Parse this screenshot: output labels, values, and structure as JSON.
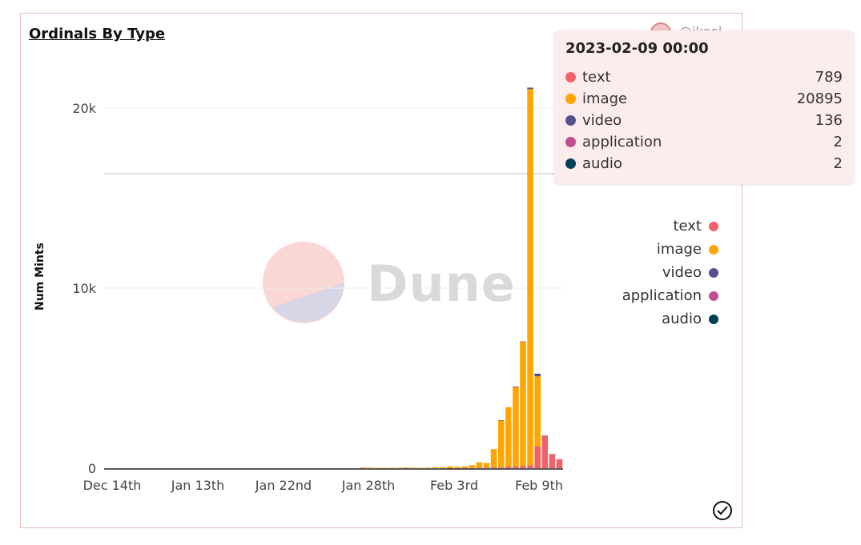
{
  "chart_data": {
    "type": "bar",
    "stacked": true,
    "title": "Ordinals By Type",
    "ylabel": "Num Mints",
    "xlabel": "",
    "ylim": [
      0,
      22000
    ],
    "y_ticks": [
      "0",
      "10k",
      "20k"
    ],
    "x_tick_labels": [
      "Dec 14th",
      "Jan 13th",
      "Jan 22nd",
      "Jan 28th",
      "Feb 3rd",
      "Feb 9th"
    ],
    "series": [
      {
        "name": "text",
        "color": "#f0626a",
        "values": [
          0,
          0,
          0,
          0,
          0,
          0,
          0,
          0,
          0,
          0,
          0,
          0,
          0,
          0,
          0,
          0,
          0,
          0,
          0,
          0,
          0,
          0,
          0,
          0,
          0,
          0,
          0,
          0,
          0,
          0,
          0,
          0,
          0,
          0,
          0,
          0,
          0,
          0,
          0,
          0,
          0,
          0,
          0,
          0,
          0,
          0,
          0,
          5,
          10,
          20,
          15,
          30,
          40,
          60,
          50,
          90,
          90,
          120,
          160,
          1200,
          1800,
          789,
          500
        ]
      },
      {
        "name": "image",
        "color": "#ffa600",
        "values": [
          0,
          0,
          0,
          0,
          0,
          0,
          0,
          0,
          0,
          0,
          0,
          0,
          0,
          0,
          0,
          0,
          0,
          0,
          0,
          0,
          0,
          0,
          0,
          0,
          0,
          0,
          0,
          0,
          0,
          0,
          0,
          0,
          0,
          0,
          0,
          40,
          30,
          20,
          10,
          20,
          30,
          40,
          30,
          20,
          30,
          50,
          60,
          100,
          70,
          80,
          150,
          300,
          250,
          1000,
          2600,
          3300,
          4400,
          6900,
          20895,
          3900
        ]
      },
      {
        "name": "video",
        "color": "#58508d",
        "values": [
          0,
          0,
          0,
          0,
          0,
          0,
          0,
          0,
          0,
          0,
          0,
          0,
          0,
          0,
          0,
          0,
          0,
          0,
          0,
          0,
          0,
          0,
          0,
          0,
          0,
          0,
          0,
          0,
          0,
          0,
          0,
          0,
          0,
          0,
          0,
          0,
          0,
          0,
          0,
          0,
          0,
          0,
          0,
          0,
          0,
          0,
          0,
          0,
          0,
          0,
          0,
          0,
          0,
          0,
          20,
          0,
          40,
          20,
          80,
          136,
          10
        ]
      },
      {
        "name": "application",
        "color": "#bc5090",
        "values": [
          0,
          0,
          0,
          0,
          0,
          0,
          0,
          0,
          0,
          0,
          0,
          0,
          0,
          0,
          0,
          0,
          0,
          0,
          0,
          0,
          0,
          0,
          0,
          0,
          0,
          0,
          0,
          0,
          0,
          0,
          0,
          0,
          0,
          0,
          0,
          0,
          0,
          0,
          0,
          0,
          0,
          0,
          0,
          0,
          0,
          0,
          0,
          0,
          0,
          0,
          0,
          0,
          0,
          0,
          0,
          0,
          0,
          0,
          0,
          2,
          0
        ]
      },
      {
        "name": "audio",
        "color": "#003f5c",
        "values": [
          0,
          0,
          0,
          0,
          0,
          0,
          0,
          0,
          0,
          0,
          0,
          0,
          0,
          0,
          0,
          0,
          0,
          0,
          0,
          0,
          0,
          0,
          0,
          0,
          0,
          0,
          0,
          0,
          0,
          0,
          0,
          0,
          0,
          0,
          0,
          0,
          0,
          0,
          0,
          0,
          0,
          0,
          0,
          0,
          0,
          0,
          0,
          0,
          0,
          0,
          0,
          0,
          0,
          0,
          0,
          0,
          0,
          0,
          0,
          2,
          0
        ]
      }
    ],
    "legend_position": "right",
    "grid": true,
    "tooltip": {
      "date": "2023-02-09 00:00",
      "rows": [
        {
          "name": "text",
          "value": "789",
          "color": "#f0626a"
        },
        {
          "name": "image",
          "value": "20895",
          "color": "#ffa600"
        },
        {
          "name": "video",
          "value": "136",
          "color": "#58508d"
        },
        {
          "name": "application",
          "value": "2",
          "color": "#bc5090"
        },
        {
          "name": "audio",
          "value": "2",
          "color": "#003f5c"
        }
      ]
    }
  },
  "watermark": {
    "text": "Dune"
  },
  "header": {
    "handle": "@ikeel"
  },
  "icons": {
    "check": "check-circle-icon",
    "avatar": "avatar"
  }
}
